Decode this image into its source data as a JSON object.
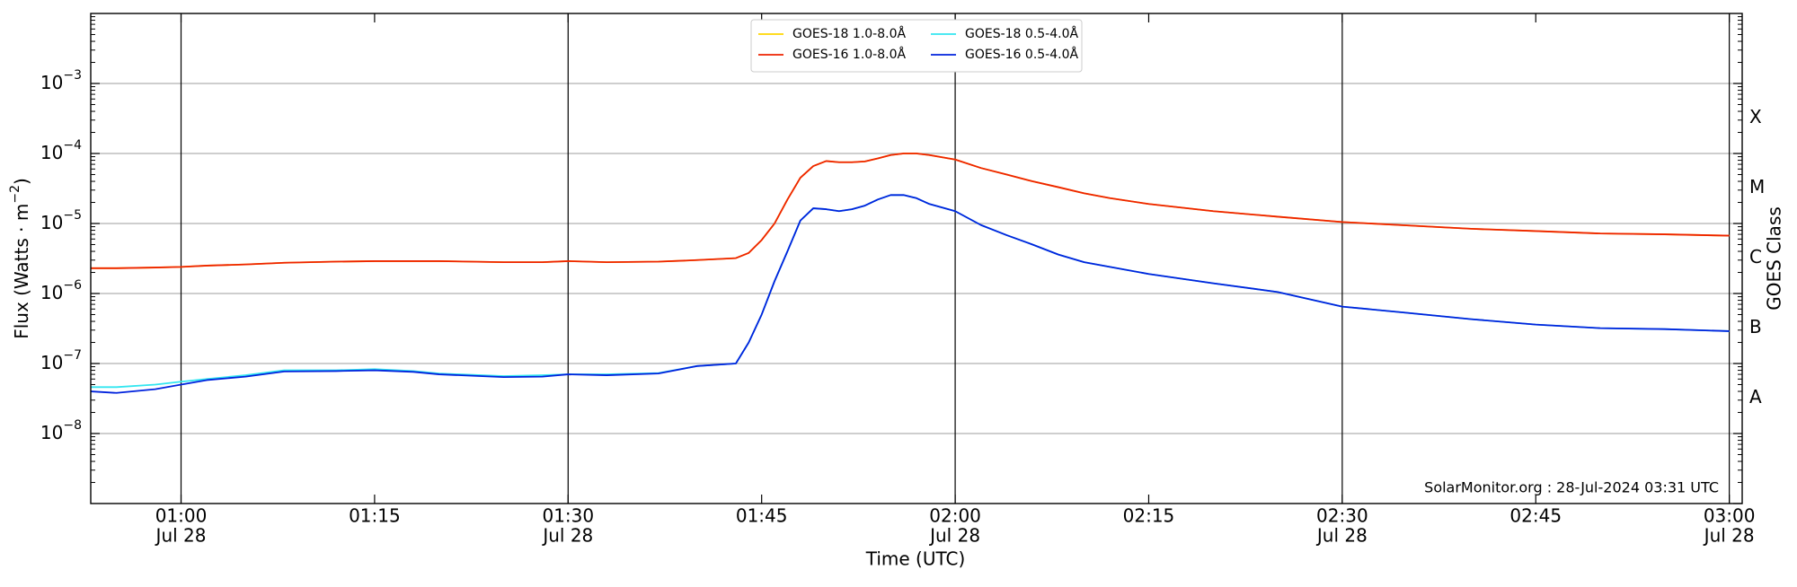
{
  "chart_data": {
    "type": "line",
    "xlabel": "Time (UTC)",
    "ylabel": {
      "text": "Flux (Watts · m",
      "exponent": "−2",
      "suffix": ")"
    },
    "y2label": "GOES Class",
    "annotation": "SolarMonitor.org : 28-Jul-2024 03:31 UTC",
    "log_y": true,
    "grid": true,
    "legend": "upper center",
    "xlim": [
      "00:53",
      "03:01"
    ],
    "xticks": [
      "01:00",
      "01:15",
      "01:30",
      "01:45",
      "02:00",
      "02:15",
      "02:30",
      "02:45",
      "03:00"
    ],
    "xtick_sublabels": [
      "Jul 28",
      null,
      "Jul 28",
      null,
      "Jul 28",
      null,
      "Jul 28",
      null,
      "Jul 28"
    ],
    "vlines": [
      "01:00",
      "01:30",
      "02:00",
      "02:30",
      "03:00"
    ],
    "ylim": [
      1e-09,
      0.01
    ],
    "yticks": [
      {
        "value": 1e-08,
        "label": "10",
        "exponent": "−8"
      },
      {
        "value": 1e-07,
        "label": "10",
        "exponent": "−7"
      },
      {
        "value": 1e-06,
        "label": "10",
        "exponent": "−6"
      },
      {
        "value": 1e-05,
        "label": "10",
        "exponent": "−5"
      },
      {
        "value": 0.0001,
        "label": "10",
        "exponent": "−4"
      },
      {
        "value": 0.001,
        "label": "10",
        "exponent": "−3"
      }
    ],
    "y2_labels": [
      {
        "value": 3.2e-08,
        "label": "A"
      },
      {
        "value": 3.2e-07,
        "label": "B"
      },
      {
        "value": 3.2e-06,
        "label": "C"
      },
      {
        "value": 3.2e-05,
        "label": "M"
      },
      {
        "value": 0.00032,
        "label": "X"
      }
    ],
    "x": [
      "00:53",
      "00:55",
      "00:58",
      "01:00",
      "01:02",
      "01:05",
      "01:08",
      "01:12",
      "01:15",
      "01:18",
      "01:20",
      "01:25",
      "01:28",
      "01:30",
      "01:33",
      "01:37",
      "01:40",
      "01:43",
      "01:44",
      "01:45",
      "01:46",
      "01:47",
      "01:48",
      "01:49",
      "01:50",
      "01:51",
      "01:52",
      "01:53",
      "01:54",
      "01:55",
      "01:56",
      "01:57",
      "01:58",
      "02:00",
      "02:02",
      "02:04",
      "02:06",
      "02:08",
      "02:10",
      "02:12",
      "02:15",
      "02:20",
      "02:25",
      "02:30",
      "02:35",
      "02:40",
      "02:45",
      "02:50",
      "02:55",
      "03:00"
    ],
    "series": [
      {
        "name": "GOES-18 1.0-8.0Å",
        "color": "#ffd700",
        "values": [
          2.3e-06,
          2.3e-06,
          2.35e-06,
          2.4e-06,
          2.5e-06,
          2.6e-06,
          2.75e-06,
          2.85e-06,
          2.9e-06,
          2.9e-06,
          2.9e-06,
          2.8e-06,
          2.8e-06,
          2.9e-06,
          2.8e-06,
          2.85e-06,
          3e-06,
          3.2e-06,
          3.8e-06,
          5.8e-06,
          1e-05,
          2.2e-05,
          4.5e-05,
          6.6e-05,
          7.8e-05,
          7.5e-05,
          7.5e-05,
          7.7e-05,
          8.5e-05,
          9.5e-05,
          0.0001,
          0.0001,
          9.5e-05,
          8.2e-05,
          6.2e-05,
          5e-05,
          4e-05,
          3.3e-05,
          2.7e-05,
          2.3e-05,
          1.9e-05,
          1.5e-05,
          1.25e-05,
          1.05e-05,
          9.4e-06,
          8.4e-06,
          7.8e-06,
          7.2e-06,
          7e-06,
          6.7e-06
        ]
      },
      {
        "name": "GOES-16 1.0-8.0Å",
        "color": "#ee2200",
        "values": [
          2.3e-06,
          2.3e-06,
          2.35e-06,
          2.4e-06,
          2.5e-06,
          2.6e-06,
          2.75e-06,
          2.85e-06,
          2.9e-06,
          2.9e-06,
          2.9e-06,
          2.8e-06,
          2.8e-06,
          2.9e-06,
          2.8e-06,
          2.85e-06,
          3e-06,
          3.2e-06,
          3.8e-06,
          5.8e-06,
          1e-05,
          2.2e-05,
          4.5e-05,
          6.6e-05,
          7.8e-05,
          7.5e-05,
          7.5e-05,
          7.7e-05,
          8.5e-05,
          9.5e-05,
          0.0001,
          0.0001,
          9.5e-05,
          8.2e-05,
          6.2e-05,
          5e-05,
          4e-05,
          3.3e-05,
          2.7e-05,
          2.3e-05,
          1.9e-05,
          1.5e-05,
          1.25e-05,
          1.05e-05,
          9.4e-06,
          8.4e-06,
          7.8e-06,
          7.2e-06,
          7e-06,
          6.7e-06
        ]
      },
      {
        "name": "GOES-18 0.5-4.0Å",
        "color": "#33e6f0",
        "values": [
          4.6e-08,
          4.6e-08,
          5e-08,
          5.5e-08,
          6e-08,
          6.8e-08,
          8e-08,
          8e-08,
          8.3e-08,
          7.8e-08,
          7.2e-08,
          6.6e-08,
          6.8e-08,
          7e-08,
          7e-08,
          7.3e-08,
          9.2e-08,
          1e-07,
          2e-07,
          5e-07,
          1.5e-06,
          4e-06,
          1.1e-05,
          1.65e-05,
          1.6e-05,
          1.5e-05,
          1.6e-05,
          1.8e-05,
          2.2e-05,
          2.55e-05,
          2.55e-05,
          2.3e-05,
          1.9e-05,
          1.5e-05,
          9.5e-06,
          6.8e-06,
          5e-06,
          3.6e-06,
          2.8e-06,
          2.4e-06,
          1.9e-06,
          1.4e-06,
          1.05e-06,
          6.5e-07,
          5.3e-07,
          4.3e-07,
          3.6e-07,
          3.2e-07,
          3.1e-07,
          2.9e-07
        ]
      },
      {
        "name": "GOES-16 0.5-4.0Å",
        "color": "#0022dd",
        "values": [
          4e-08,
          3.8e-08,
          4.3e-08,
          5e-08,
          5.8e-08,
          6.5e-08,
          7.7e-08,
          7.8e-08,
          8e-08,
          7.6e-08,
          7e-08,
          6.4e-08,
          6.5e-08,
          7e-08,
          6.8e-08,
          7.2e-08,
          9.2e-08,
          1e-07,
          2e-07,
          5e-07,
          1.5e-06,
          4e-06,
          1.1e-05,
          1.65e-05,
          1.6e-05,
          1.5e-05,
          1.6e-05,
          1.8e-05,
          2.2e-05,
          2.55e-05,
          2.55e-05,
          2.3e-05,
          1.9e-05,
          1.5e-05,
          9.5e-06,
          6.8e-06,
          5e-06,
          3.6e-06,
          2.8e-06,
          2.4e-06,
          1.9e-06,
          1.4e-06,
          1.05e-06,
          6.5e-07,
          5.3e-07,
          4.3e-07,
          3.6e-07,
          3.2e-07,
          3.1e-07,
          2.9e-07
        ]
      }
    ]
  }
}
